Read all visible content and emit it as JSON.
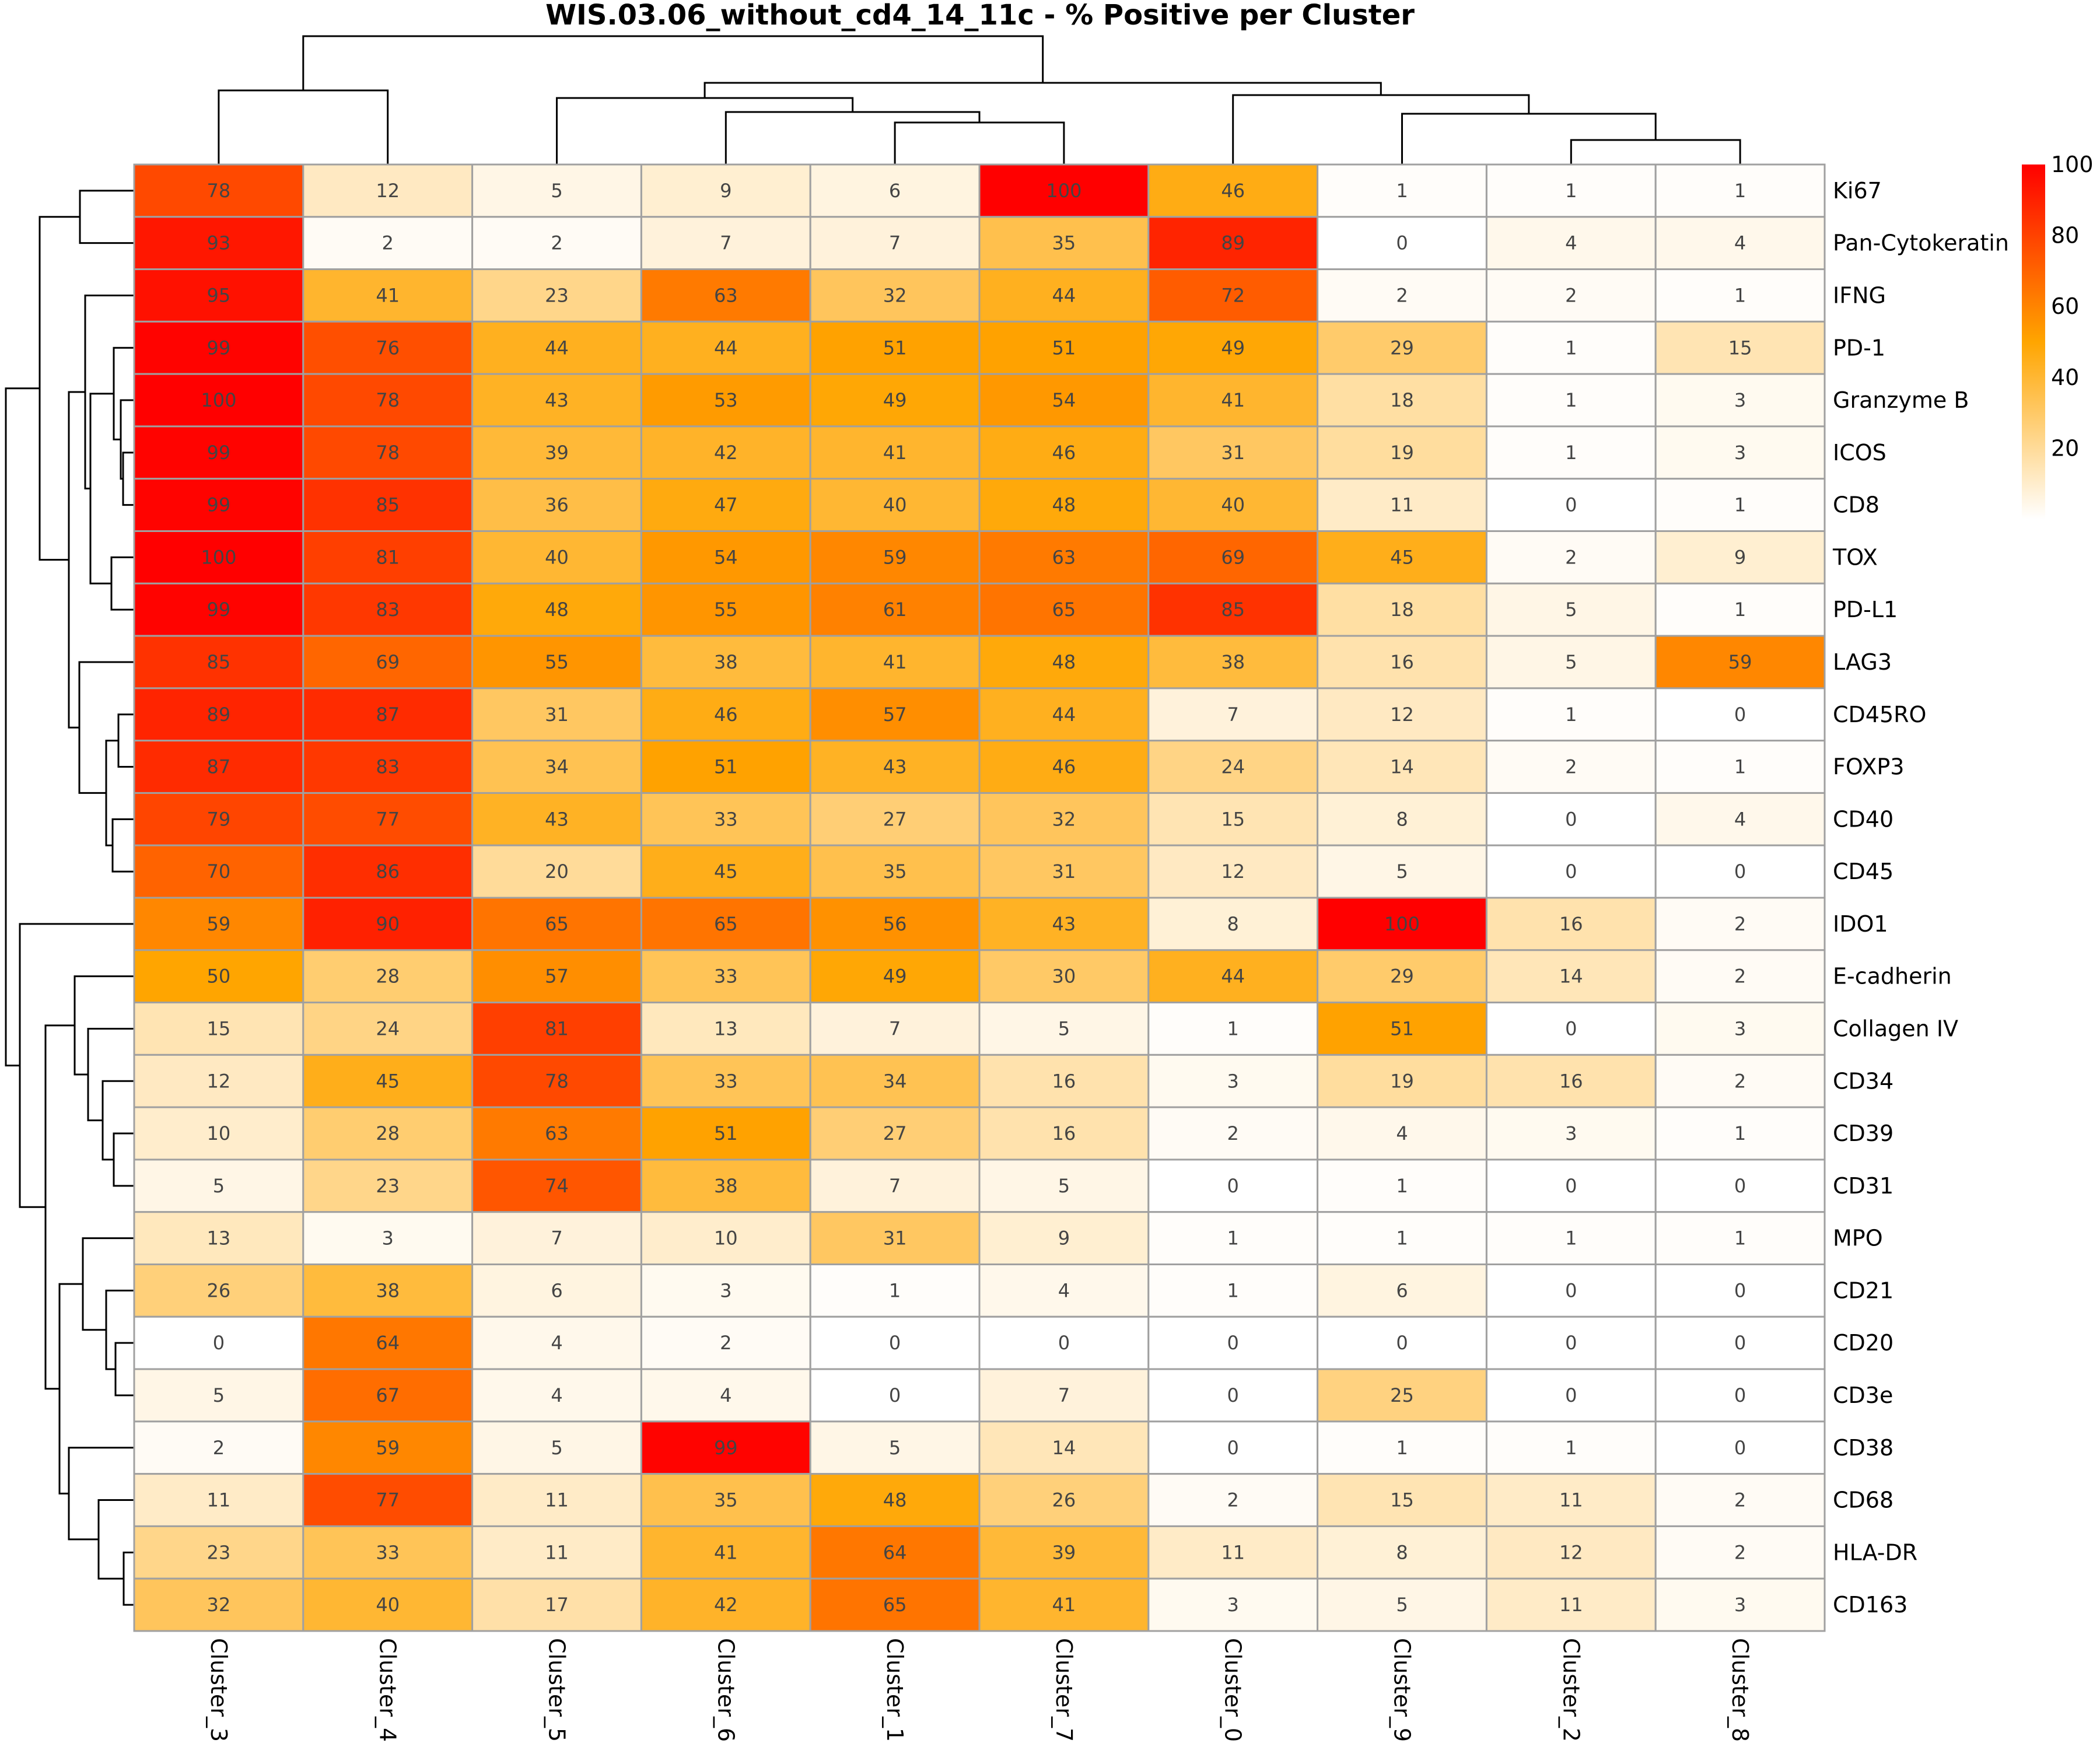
{
  "chart_data": {
    "type": "heatmap",
    "title": "WIS.03.06_without_cd4_14_11c - % Positive per Cluster",
    "xlabel": "",
    "ylabel": "",
    "columns": [
      "Cluster_3",
      "Cluster_4",
      "Cluster_5",
      "Cluster_6",
      "Cluster_1",
      "Cluster_7",
      "Cluster_0",
      "Cluster_9",
      "Cluster_2",
      "Cluster_8"
    ],
    "rows": [
      "Ki67",
      "Pan-Cytokeratin",
      "IFNG",
      "PD-1",
      "Granzyme B",
      "ICOS",
      "CD8",
      "TOX",
      "PD-L1",
      "LAG3",
      "CD45RO",
      "FOXP3",
      "CD40",
      "CD45",
      "IDO1",
      "E-cadherin",
      "Collagen IV",
      "CD34",
      "CD39",
      "CD31",
      "MPO",
      "CD21",
      "CD20",
      "CD3e",
      "CD38",
      "CD68",
      "HLA-DR",
      "CD163"
    ],
    "values": [
      [
        78,
        12,
        5,
        9,
        6,
        100,
        46,
        1,
        1,
        1
      ],
      [
        93,
        2,
        2,
        7,
        7,
        35,
        89,
        0,
        4,
        4
      ],
      [
        95,
        41,
        23,
        63,
        32,
        44,
        72,
        2,
        2,
        1
      ],
      [
        99,
        76,
        44,
        44,
        51,
        51,
        49,
        29,
        1,
        15
      ],
      [
        100,
        78,
        43,
        53,
        49,
        54,
        41,
        18,
        1,
        3
      ],
      [
        99,
        78,
        39,
        42,
        41,
        46,
        31,
        19,
        1,
        3
      ],
      [
        99,
        85,
        36,
        47,
        40,
        48,
        40,
        11,
        0,
        1
      ],
      [
        100,
        81,
        40,
        54,
        59,
        63,
        69,
        45,
        2,
        9
      ],
      [
        99,
        83,
        48,
        55,
        61,
        65,
        85,
        18,
        5,
        1
      ],
      [
        85,
        69,
        55,
        38,
        41,
        48,
        38,
        16,
        5,
        59
      ],
      [
        89,
        87,
        31,
        46,
        57,
        44,
        7,
        12,
        1,
        0
      ],
      [
        87,
        83,
        34,
        51,
        43,
        46,
        24,
        14,
        2,
        1
      ],
      [
        79,
        77,
        43,
        33,
        27,
        32,
        15,
        8,
        0,
        4
      ],
      [
        70,
        86,
        20,
        45,
        35,
        31,
        12,
        5,
        0,
        0
      ],
      [
        59,
        90,
        65,
        65,
        56,
        43,
        8,
        100,
        16,
        2
      ],
      [
        50,
        28,
        57,
        33,
        49,
        30,
        44,
        29,
        14,
        2
      ],
      [
        15,
        24,
        81,
        13,
        7,
        5,
        1,
        51,
        0,
        3
      ],
      [
        12,
        45,
        78,
        33,
        34,
        16,
        3,
        19,
        16,
        2
      ],
      [
        10,
        28,
        63,
        51,
        27,
        16,
        2,
        4,
        3,
        1
      ],
      [
        5,
        23,
        74,
        38,
        7,
        5,
        0,
        1,
        0,
        0
      ],
      [
        13,
        3,
        7,
        10,
        31,
        9,
        1,
        1,
        1,
        1
      ],
      [
        26,
        38,
        6,
        3,
        1,
        4,
        1,
        6,
        0,
        0
      ],
      [
        0,
        64,
        4,
        2,
        0,
        0,
        0,
        0,
        0,
        0
      ],
      [
        5,
        67,
        4,
        4,
        0,
        7,
        0,
        25,
        0,
        0
      ],
      [
        2,
        59,
        5,
        99,
        5,
        14,
        0,
        1,
        1,
        0
      ],
      [
        11,
        77,
        11,
        35,
        48,
        26,
        2,
        15,
        11,
        2
      ],
      [
        23,
        33,
        11,
        41,
        64,
        39,
        11,
        8,
        12,
        2
      ],
      [
        32,
        40,
        17,
        42,
        65,
        41,
        3,
        5,
        11,
        3
      ]
    ],
    "value_range": [
      0,
      100
    ],
    "colormap": {
      "stops": [
        {
          "value": 0,
          "color": "#ffffff"
        },
        {
          "value": 50,
          "color": "#ffa500"
        },
        {
          "value": 100,
          "color": "#ff0000"
        }
      ]
    },
    "colorbar": {
      "ticks": [
        "20",
        "40",
        "60",
        "80",
        "100"
      ],
      "tick_values": [
        20,
        40,
        60,
        80,
        100
      ],
      "placement": "top-right"
    },
    "annotations": "cell values shown as integers",
    "column_dendrogram": true,
    "row_dendrogram": true
  }
}
